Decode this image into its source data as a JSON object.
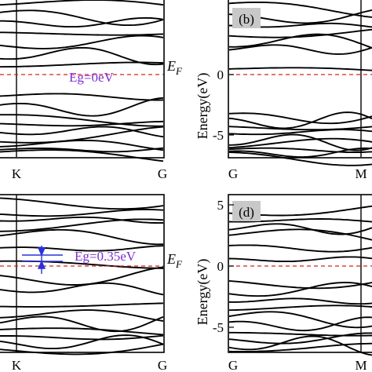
{
  "figure": {
    "colors": {
      "bands": "#000000",
      "fermi": "#d62020",
      "eg_label": "#7a2fd0",
      "gap_marker": "#2a32d8",
      "panel_label_bg": "#c8c8c8"
    },
    "ef_label_main": "E",
    "ef_label_sub": "F"
  },
  "chart_data": [
    {
      "panel": "a",
      "type": "line",
      "kpoints": [
        "K",
        "G"
      ],
      "annotation": "Eg=0eV",
      "fermi_level_eV": 0,
      "ylim": [
        -6.6,
        6.3
      ],
      "band_count": 16
    },
    {
      "panel": "b",
      "type": "line",
      "label": "(b)",
      "ylabel": "Energy(eV)",
      "yticks": [
        "-5",
        "0"
      ],
      "kpoints": [
        "G",
        "M"
      ],
      "fermi_level_eV": 0,
      "ylim": [
        -6.6,
        6.3
      ],
      "band_count": 16
    },
    {
      "panel": "c",
      "type": "line",
      "kpoints": [
        "K",
        "G"
      ],
      "annotation": "Eg=0.35eV",
      "fermi_level_eV": 0,
      "gap_eV": 0.35,
      "ylim": [
        -6.6,
        6.3
      ],
      "band_count": 16
    },
    {
      "panel": "d",
      "type": "line",
      "label": "(d)",
      "ylabel": "Energy(eV)",
      "yticks": [
        "5",
        "0",
        "-5"
      ],
      "kpoints": [
        "G",
        "M"
      ],
      "fermi_level_eV": 0,
      "ylim": [
        -6.6,
        6.3
      ],
      "band_count": 16
    }
  ]
}
